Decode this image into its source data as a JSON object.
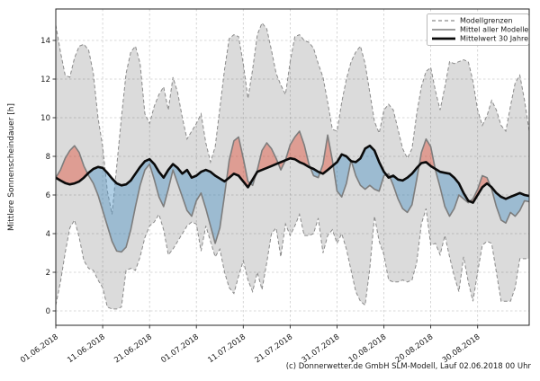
{
  "caption": "(c) Donnerwetter.de GmbH SLM-Modell, Lauf 02.06.2018 00 Uhr",
  "chart_data": {
    "type": "line",
    "title": "",
    "xlabel": "",
    "ylabel": "Mittlere Sonnenscheindauer [h]",
    "ylim": [
      -0.75,
      15.6
    ],
    "grid": "dashed, both axes",
    "y_ticks": [
      0,
      2,
      4,
      6,
      8,
      10,
      12,
      14
    ],
    "x_ticks": [
      {
        "day": 0,
        "label": "01.06.2018"
      },
      {
        "day": 10,
        "label": "11.06.2018"
      },
      {
        "day": 20,
        "label": "21.06.2018"
      },
      {
        "day": 30,
        "label": "01.07.2018"
      },
      {
        "day": 40,
        "label": "11.07.2018"
      },
      {
        "day": 50,
        "label": "21.07.2018"
      },
      {
        "day": 60,
        "label": "31.07.2018"
      },
      {
        "day": 70,
        "label": "10.08.2018"
      },
      {
        "day": 80,
        "label": "20.08.2018"
      },
      {
        "day": 90,
        "label": "30.08.2018"
      }
    ],
    "legend": {
      "position": "upper right",
      "entries": [
        {
          "label": "Modellgrenzen",
          "style": "dashed-gray"
        },
        {
          "label": "Mittel aller Modelle",
          "style": "solid-gray"
        },
        {
          "label": "Mittelwert 30 Jahre",
          "style": "thick-black"
        }
      ]
    },
    "colors": {
      "band_fill": "rgba(0,0,0,0.14)",
      "band_edge": "#8a8a8a",
      "above_fill": "rgba(225,95,75,0.5)",
      "below_fill": "rgba(80,148,198,0.45)",
      "model_mean_line": "#7d7d7d",
      "climate_mean_line": "#0a0a0a",
      "grid_line": "#cccccc"
    },
    "series": [
      {
        "name": "Modellgrenzen (obere Grenze)",
        "role": "upper_bound",
        "values": [
          14.8,
          13.4,
          12.2,
          12.1,
          13.1,
          13.7,
          13.8,
          13.5,
          12.3,
          10.0,
          8.5,
          6.2,
          5.0,
          7.5,
          10.0,
          12.3,
          13.4,
          13.7,
          12.8,
          10.2,
          9.7,
          10.6,
          11.2,
          11.6,
          10.4,
          12.1,
          11.3,
          10.0,
          8.9,
          9.3,
          9.7,
          10.2,
          8.7,
          7.7,
          8.5,
          10.5,
          12.5,
          14.1,
          14.3,
          14.2,
          12.8,
          11.0,
          12.5,
          14.3,
          14.9,
          14.6,
          13.5,
          12.3,
          11.7,
          11.2,
          12.9,
          14.2,
          14.3,
          14.0,
          13.9,
          13.6,
          12.8,
          12.1,
          10.8,
          9.4,
          9.3,
          10.8,
          12.0,
          12.9,
          13.4,
          13.7,
          12.8,
          11.3,
          9.8,
          9.2,
          10.4,
          10.7,
          10.4,
          9.4,
          8.4,
          7.9,
          8.4,
          10.2,
          11.6,
          12.4,
          12.6,
          11.4,
          10.4,
          11.6,
          12.9,
          12.8,
          12.9,
          13.0,
          12.9,
          11.9,
          10.4,
          9.6,
          10.1,
          10.9,
          10.4,
          9.6,
          9.3,
          10.6,
          11.8,
          12.2,
          10.9,
          9.3
        ]
      },
      {
        "name": "Modellgrenzen (untere Grenze)",
        "role": "lower_bound",
        "values": [
          0.3,
          1.5,
          3.0,
          4.3,
          4.7,
          3.8,
          2.6,
          2.2,
          2.1,
          1.6,
          1.2,
          0.2,
          0.1,
          0.1,
          0.2,
          2.1,
          2.2,
          2.1,
          2.8,
          3.8,
          4.4,
          4.6,
          5.0,
          4.2,
          2.9,
          3.2,
          3.6,
          4.0,
          4.4,
          4.6,
          4.5,
          3.1,
          4.4,
          3.6,
          2.8,
          3.2,
          2.0,
          1.2,
          0.9,
          1.8,
          2.6,
          1.6,
          1.0,
          2.0,
          1.1,
          2.5,
          4.0,
          4.3,
          2.8,
          4.5,
          3.9,
          4.4,
          5.0,
          3.9,
          3.9,
          4.0,
          4.8,
          3.0,
          3.9,
          4.2,
          3.5,
          4.0,
          3.2,
          2.1,
          1.0,
          0.5,
          0.3,
          2.2,
          4.9,
          3.6,
          2.9,
          1.6,
          1.5,
          1.5,
          1.6,
          1.5,
          1.6,
          2.5,
          4.5,
          5.3,
          3.4,
          3.5,
          2.9,
          3.9,
          2.8,
          1.8,
          1.0,
          2.8,
          1.5,
          0.5,
          2.0,
          3.4,
          3.6,
          3.5,
          2.0,
          0.5,
          0.5,
          0.5,
          1.2,
          2.7,
          2.7,
          2.7
        ]
      },
      {
        "name": "Mittel aller Modelle",
        "role": "model_mean",
        "values": [
          6.9,
          7.3,
          7.9,
          8.3,
          8.55,
          8.2,
          7.5,
          7.0,
          6.6,
          6.0,
          5.2,
          4.4,
          3.6,
          3.1,
          3.05,
          3.3,
          4.2,
          5.4,
          6.5,
          7.3,
          7.6,
          6.8,
          5.9,
          5.4,
          6.3,
          7.3,
          6.6,
          5.9,
          5.2,
          4.9,
          5.7,
          6.1,
          5.3,
          4.4,
          3.5,
          4.3,
          6.0,
          7.8,
          8.8,
          9.0,
          7.9,
          6.7,
          6.5,
          7.3,
          8.3,
          8.7,
          8.4,
          7.9,
          7.3,
          7.8,
          8.6,
          9.0,
          9.3,
          8.6,
          7.6,
          7.0,
          6.9,
          7.6,
          9.1,
          7.8,
          6.2,
          5.9,
          6.6,
          7.8,
          7.0,
          6.5,
          6.3,
          6.5,
          6.3,
          6.2,
          7.0,
          7.1,
          6.5,
          5.8,
          5.3,
          5.1,
          5.5,
          6.8,
          8.2,
          8.9,
          8.5,
          7.3,
          6.4,
          5.4,
          4.9,
          5.3,
          6.0,
          5.8,
          5.6,
          5.8,
          6.3,
          7.0,
          6.9,
          6.3,
          5.4,
          4.7,
          4.55,
          5.1,
          4.9,
          5.2,
          5.7,
          5.65
        ]
      },
      {
        "name": "Mittelwert 30 Jahre",
        "role": "climate_mean",
        "values": [
          6.9,
          6.75,
          6.62,
          6.55,
          6.6,
          6.7,
          6.9,
          7.15,
          7.35,
          7.45,
          7.4,
          7.15,
          6.85,
          6.6,
          6.5,
          6.55,
          6.75,
          7.1,
          7.45,
          7.75,
          7.85,
          7.6,
          7.2,
          6.9,
          7.3,
          7.6,
          7.4,
          7.1,
          7.3,
          6.9,
          7.0,
          7.2,
          7.3,
          7.2,
          7.0,
          6.85,
          6.7,
          6.9,
          7.1,
          7.0,
          6.7,
          6.4,
          6.8,
          7.2,
          7.3,
          7.4,
          7.5,
          7.6,
          7.7,
          7.8,
          7.9,
          7.85,
          7.7,
          7.6,
          7.45,
          7.35,
          7.2,
          7.1,
          7.3,
          7.5,
          7.7,
          8.1,
          8.0,
          7.75,
          7.7,
          7.9,
          8.4,
          8.55,
          8.3,
          7.7,
          7.2,
          6.9,
          7.0,
          6.8,
          6.75,
          6.9,
          7.1,
          7.4,
          7.65,
          7.7,
          7.5,
          7.35,
          7.2,
          7.15,
          7.1,
          6.9,
          6.6,
          6.1,
          5.7,
          5.6,
          6.0,
          6.4,
          6.6,
          6.4,
          6.1,
          5.9,
          5.8,
          5.9,
          6.0,
          6.1,
          6.0,
          5.95
        ]
      }
    ]
  }
}
